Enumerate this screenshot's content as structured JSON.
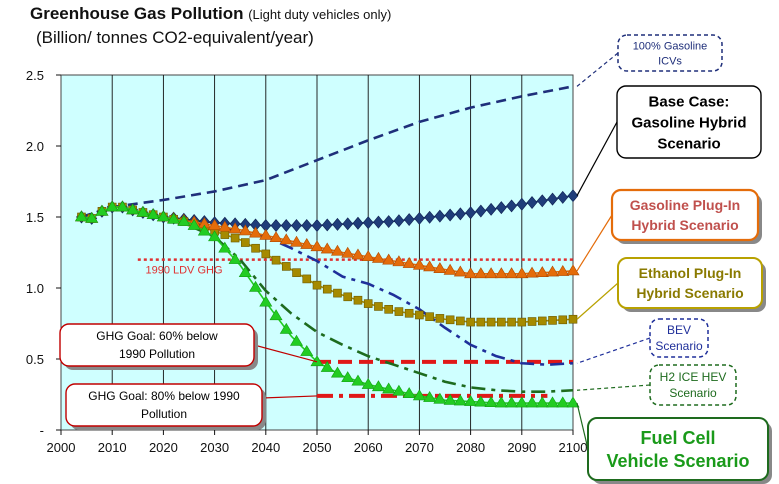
{
  "chart_data": {
    "type": "line",
    "title": "Greenhouse Gas Pollution",
    "subtitle": "(Light duty vehicles only)",
    "units": "(Billion/ tonnes CO2-equivalent/year)",
    "xlim": [
      2000,
      2100
    ],
    "ylim": [
      0,
      2.5
    ],
    "x_ticks": [
      "2000",
      "2010",
      "2020",
      "2030",
      "2040",
      "2050",
      "2060",
      "2070",
      "2080",
      "2090",
      "2100"
    ],
    "y_ticks": [
      "-",
      "0.5",
      "1.0",
      "1.5",
      "2.0",
      "2.5"
    ],
    "grid": "vertical",
    "plot_bg": "#cfffff",
    "series": [
      {
        "name": "100% Gasoline ICVs",
        "label_lines": [
          "100% Gasoline",
          "ICVs"
        ],
        "color": "#1f2f7a",
        "style": "dash",
        "marker": "none",
        "x": [
          2004,
          2010,
          2020,
          2030,
          2040,
          2050,
          2060,
          2070,
          2080,
          2090,
          2100
        ],
        "y": [
          1.5,
          1.57,
          1.62,
          1.68,
          1.76,
          1.9,
          2.04,
          2.17,
          2.27,
          2.35,
          2.42
        ]
      },
      {
        "name": "Base Case: Gasoline Hybrid Scenario",
        "label_lines": [
          "Base Case:",
          "Gasoline Hybrid",
          "Scenario"
        ],
        "color": "#1f3d7a",
        "style": "solid",
        "marker": "diamond",
        "x": [
          2004,
          2006,
          2008,
          2010,
          2012,
          2015,
          2020,
          2025,
          2030,
          2035,
          2040,
          2045,
          2050,
          2055,
          2060,
          2065,
          2070,
          2075,
          2080,
          2085,
          2090,
          2095,
          2100
        ],
        "y": [
          1.5,
          1.49,
          1.54,
          1.57,
          1.57,
          1.54,
          1.5,
          1.48,
          1.46,
          1.45,
          1.44,
          1.44,
          1.44,
          1.45,
          1.46,
          1.47,
          1.49,
          1.51,
          1.53,
          1.56,
          1.59,
          1.62,
          1.65
        ]
      },
      {
        "name": "Gasoline Plug-In Hybrid Scenario",
        "label_lines": [
          "Gasoline Plug-In",
          "Hybrid Scenario"
        ],
        "color": "#e46c0a",
        "style": "solid",
        "marker": "triangle",
        "x": [
          2004,
          2006,
          2008,
          2010,
          2012,
          2015,
          2020,
          2025,
          2030,
          2035,
          2040,
          2045,
          2050,
          2055,
          2060,
          2065,
          2070,
          2075,
          2080,
          2085,
          2090,
          2095,
          2100
        ],
        "y": [
          1.5,
          1.49,
          1.54,
          1.57,
          1.57,
          1.54,
          1.5,
          1.47,
          1.44,
          1.41,
          1.37,
          1.33,
          1.29,
          1.25,
          1.22,
          1.19,
          1.16,
          1.13,
          1.1,
          1.1,
          1.1,
          1.11,
          1.12
        ]
      },
      {
        "name": "Ethanol Plug-In Hybrid Scenario",
        "label_lines": [
          "Ethanol Plug-In",
          "Hybrid Scenario"
        ],
        "color": "#a58a00",
        "style": "solid",
        "marker": "square",
        "x": [
          2004,
          2006,
          2008,
          2010,
          2012,
          2015,
          2020,
          2025,
          2030,
          2035,
          2040,
          2045,
          2050,
          2055,
          2060,
          2065,
          2070,
          2075,
          2080,
          2085,
          2090,
          2095,
          2100
        ],
        "y": [
          1.5,
          1.49,
          1.54,
          1.57,
          1.57,
          1.54,
          1.5,
          1.46,
          1.4,
          1.34,
          1.24,
          1.13,
          1.02,
          0.95,
          0.89,
          0.84,
          0.81,
          0.78,
          0.76,
          0.76,
          0.76,
          0.77,
          0.78
        ]
      },
      {
        "name": "BEV Scenario",
        "label_lines": [
          "BEV",
          "Scenario"
        ],
        "color": "#1f2f9a",
        "style": "dashdot",
        "marker": "none",
        "x": [
          2020,
          2030,
          2040,
          2045,
          2050,
          2055,
          2060,
          2065,
          2070,
          2075,
          2080,
          2085,
          2090,
          2095,
          2100
        ],
        "y": [
          1.5,
          1.43,
          1.36,
          1.28,
          1.19,
          1.08,
          1.03,
          0.95,
          0.85,
          0.72,
          0.6,
          0.52,
          0.47,
          0.46,
          0.47
        ]
      },
      {
        "name": "H2 ICE HEV Scenario",
        "label_lines": [
          "H2 ICE HEV",
          "Scenario"
        ],
        "color": "#1e6b1e",
        "style": "dashdot",
        "marker": "none",
        "x": [
          2020,
          2025,
          2030,
          2035,
          2040,
          2045,
          2050,
          2055,
          2060,
          2065,
          2070,
          2075,
          2080,
          2085,
          2090,
          2095,
          2100
        ],
        "y": [
          1.5,
          1.44,
          1.36,
          1.2,
          0.98,
          0.82,
          0.69,
          0.6,
          0.52,
          0.46,
          0.4,
          0.34,
          0.3,
          0.28,
          0.27,
          0.27,
          0.28
        ]
      },
      {
        "name": "Fuel Cell Vehicle Scenario",
        "label_lines": [
          "Fuel Cell",
          "Vehicle Scenario"
        ],
        "color": "#22cc22",
        "style": "solid",
        "marker": "triangle",
        "x": [
          2004,
          2006,
          2008,
          2010,
          2012,
          2015,
          2020,
          2025,
          2030,
          2035,
          2040,
          2045,
          2050,
          2055,
          2060,
          2065,
          2070,
          2075,
          2080,
          2085,
          2090,
          2095,
          2100
        ],
        "y": [
          1.5,
          1.49,
          1.54,
          1.57,
          1.57,
          1.54,
          1.5,
          1.46,
          1.36,
          1.16,
          0.9,
          0.66,
          0.48,
          0.38,
          0.32,
          0.28,
          0.24,
          0.21,
          0.2,
          0.19,
          0.19,
          0.19,
          0.19
        ]
      }
    ],
    "reference_lines": [
      {
        "label": "1990 LDV GHG",
        "y": 1.2,
        "x": [
          2015,
          2100
        ],
        "color": "#e03030",
        "style": "dotted"
      },
      {
        "label": "GHG Goal: 60% below 1990 Pollution",
        "label_lines": [
          "GHG Goal: 60% below",
          "1990 Pollution"
        ],
        "y": 0.48,
        "x": [
          2050,
          2100
        ],
        "color": "#e01818",
        "style": "dash"
      },
      {
        "label": "GHG Goal: 80% below 1990 Pollution",
        "label_lines": [
          "GHG Goal: 80% below  1990",
          "Pollution"
        ],
        "y": 0.24,
        "x": [
          2050,
          2095
        ],
        "color": "#e01818",
        "style": "dashdot"
      }
    ]
  }
}
